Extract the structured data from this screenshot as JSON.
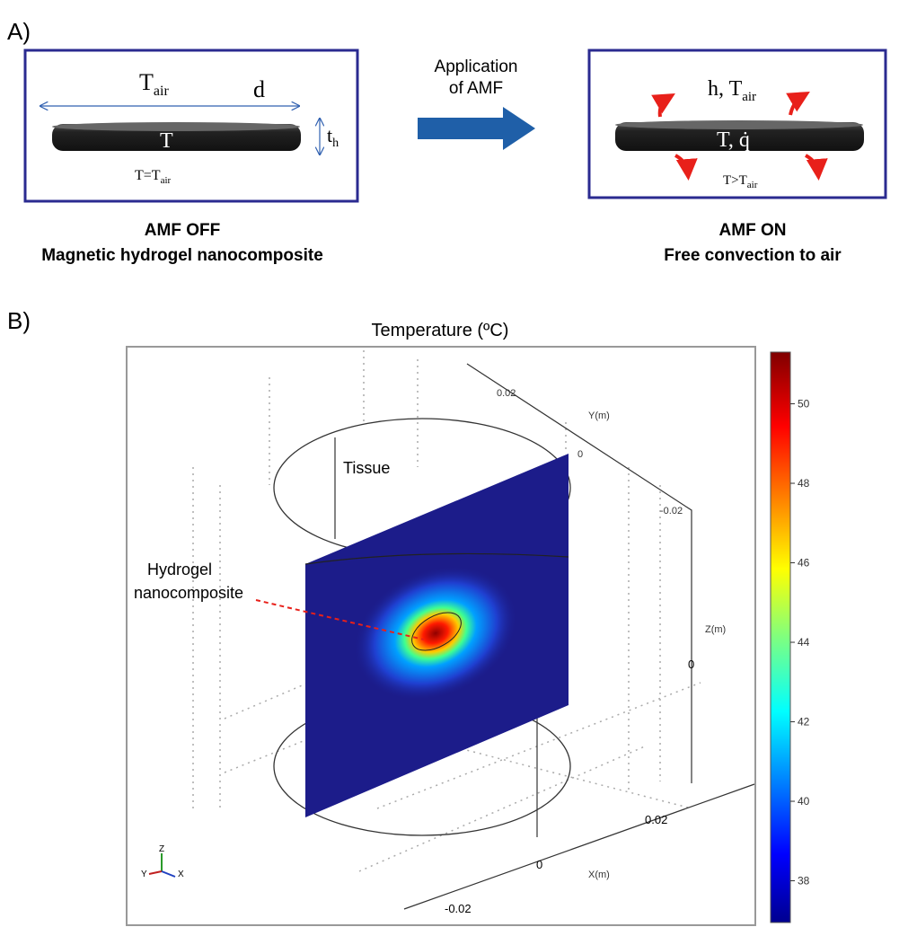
{
  "panel_a": {
    "label": "A)",
    "left_box": {
      "t_air": {
        "main": "T",
        "sub": "air"
      },
      "d": "d",
      "t_h": {
        "main": "t",
        "sub": "h"
      },
      "disc": "T",
      "eq": {
        "main": "T=T",
        "sub": "air"
      }
    },
    "arrow_label": [
      "Application",
      "of AMF"
    ],
    "right_box": {
      "h_t_air": {
        "main": "h, T",
        "sub": "air"
      },
      "disc": "T, q̇",
      "gt": {
        "main": "T>T",
        "sub": "air"
      }
    },
    "left_caption": [
      "AMF OFF",
      "Magnetic hydrogel nanocomposite"
    ],
    "right_caption": [
      "AMF ON",
      "Free convection to air"
    ]
  },
  "panel_b": {
    "label": "B)",
    "title": "Temperature (ºC)",
    "annotations": {
      "tissue": "Tissue",
      "hydrogel": [
        "Hydrogel",
        "nanocomposite"
      ]
    },
    "axes": {
      "y_label": "Y(m)",
      "y_ticks": [
        "0.02",
        "0",
        "-0.02"
      ],
      "z_label": "Z(m)",
      "z_ticks": [
        "0"
      ],
      "x_label": "X(m)",
      "x_ticks": [
        "0.02",
        "0",
        "-0.02"
      ]
    },
    "triad": [
      "Y",
      "Z",
      "X"
    ],
    "colorbar": {
      "ticks": [
        50,
        48,
        46,
        44,
        42,
        40,
        38
      ],
      "lim": [
        36.95,
        51.3
      ]
    }
  }
}
